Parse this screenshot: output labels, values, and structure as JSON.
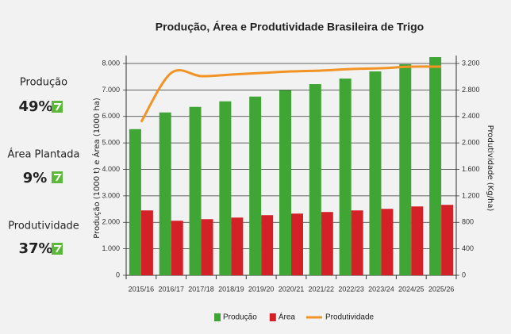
{
  "kpis": [
    {
      "label": "Produção",
      "value": "49%"
    },
    {
      "label": "Área Plantada",
      "value": "9%"
    },
    {
      "label": "Produtividade",
      "value": "37%"
    }
  ],
  "chart_data": {
    "type": "bar",
    "title": "Produção, Área e Produtividade Brasileira de Trigo",
    "y_label": "Produção (1000 t) e Área (1000 ha)",
    "y2_label": "Produtividade (Kg/ha)",
    "categories": [
      "2015/16",
      "2016/17",
      "2017/18",
      "2018/19",
      "2019/20",
      "2020/21",
      "2021/22",
      "2022/23",
      "2023/24",
      "2024/25",
      "2025/26"
    ],
    "series": [
      {
        "name": "Produção",
        "color": "#3fa535",
        "type": "bar",
        "values": [
          5520,
          6150,
          6360,
          6570,
          6750,
          6990,
          7220,
          7430,
          7700,
          7970,
          8240
        ]
      },
      {
        "name": "Área",
        "color": "#d42027",
        "type": "bar",
        "values": [
          2450,
          2060,
          2120,
          2180,
          2270,
          2330,
          2390,
          2450,
          2510,
          2600,
          2660
        ]
      },
      {
        "name": "Produtividade",
        "color": "#f29325",
        "type": "line",
        "axis": "y2",
        "values": [
          2316,
          3057,
          3009,
          3033,
          3057,
          3080,
          3093,
          3116,
          3128,
          3152,
          3152
        ]
      }
    ],
    "ylim": [
      0,
      8300
    ],
    "yticks": [
      0,
      {
        "value": 1000,
        "label": "1.000"
      },
      {
        "value": 2000,
        "label": "2.000"
      },
      {
        "value": 3000,
        "label": "3.000"
      },
      {
        "value": 4000,
        "label": "4.000"
      },
      {
        "value": 5000,
        "label": "5.000"
      },
      {
        "value": 6000,
        "label": "6.000"
      },
      {
        "value": 7000,
        "label": "7.000"
      },
      {
        "value": 8000,
        "label": "8.000"
      }
    ],
    "y2lim": [
      0,
      3320
    ],
    "y2ticks": [
      0,
      400,
      800,
      {
        "value": 1200,
        "label": "1.200"
      },
      {
        "value": 1600,
        "label": "1.600"
      },
      {
        "value": 2000,
        "label": "2.000"
      },
      {
        "value": 2400,
        "label": "2.400"
      },
      {
        "value": 2800,
        "label": "2.800"
      },
      {
        "value": 3200,
        "label": "3.200"
      }
    ],
    "grid": true,
    "legend": "bottom"
  }
}
